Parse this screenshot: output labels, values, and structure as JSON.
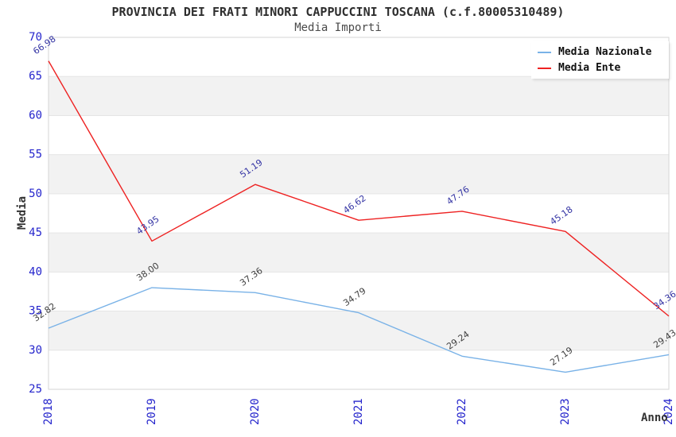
{
  "chart_data": {
    "type": "line",
    "title": "PROVINCIA DEI FRATI MINORI CAPPUCCINI TOSCANA (c.f.80005310489)",
    "subtitle": "Media Importi",
    "xlabel": "Anno",
    "ylabel": "Media",
    "categories": [
      "2018",
      "2019",
      "2020",
      "2021",
      "2022",
      "2023",
      "2024"
    ],
    "series": [
      {
        "name": "Media Nazionale",
        "color": "#79b2e7",
        "label_color": "#3f3f3f",
        "values": [
          32.82,
          38.0,
          37.36,
          34.79,
          29.24,
          27.19,
          29.43
        ]
      },
      {
        "name": "Media Ente",
        "color": "#ee2222",
        "label_color": "#3434a4",
        "values": [
          66.98,
          43.95,
          51.19,
          46.62,
          47.76,
          45.18,
          34.36
        ]
      }
    ],
    "ylim": [
      25,
      70
    ],
    "ytick_step": 5,
    "yticks": [
      25,
      30,
      35,
      40,
      45,
      50,
      55,
      60,
      65,
      70
    ],
    "grid": "horizontal-bands",
    "legend_position": "top-right"
  },
  "colors": {
    "tick_label": "#2424cc",
    "band_fill": "#f2f2f2",
    "gridline": "#e5e5e5",
    "plot_border": "#d6d6d6",
    "title_text": "#2e2e2e",
    "subtitle_text": "#4a4a4a"
  }
}
